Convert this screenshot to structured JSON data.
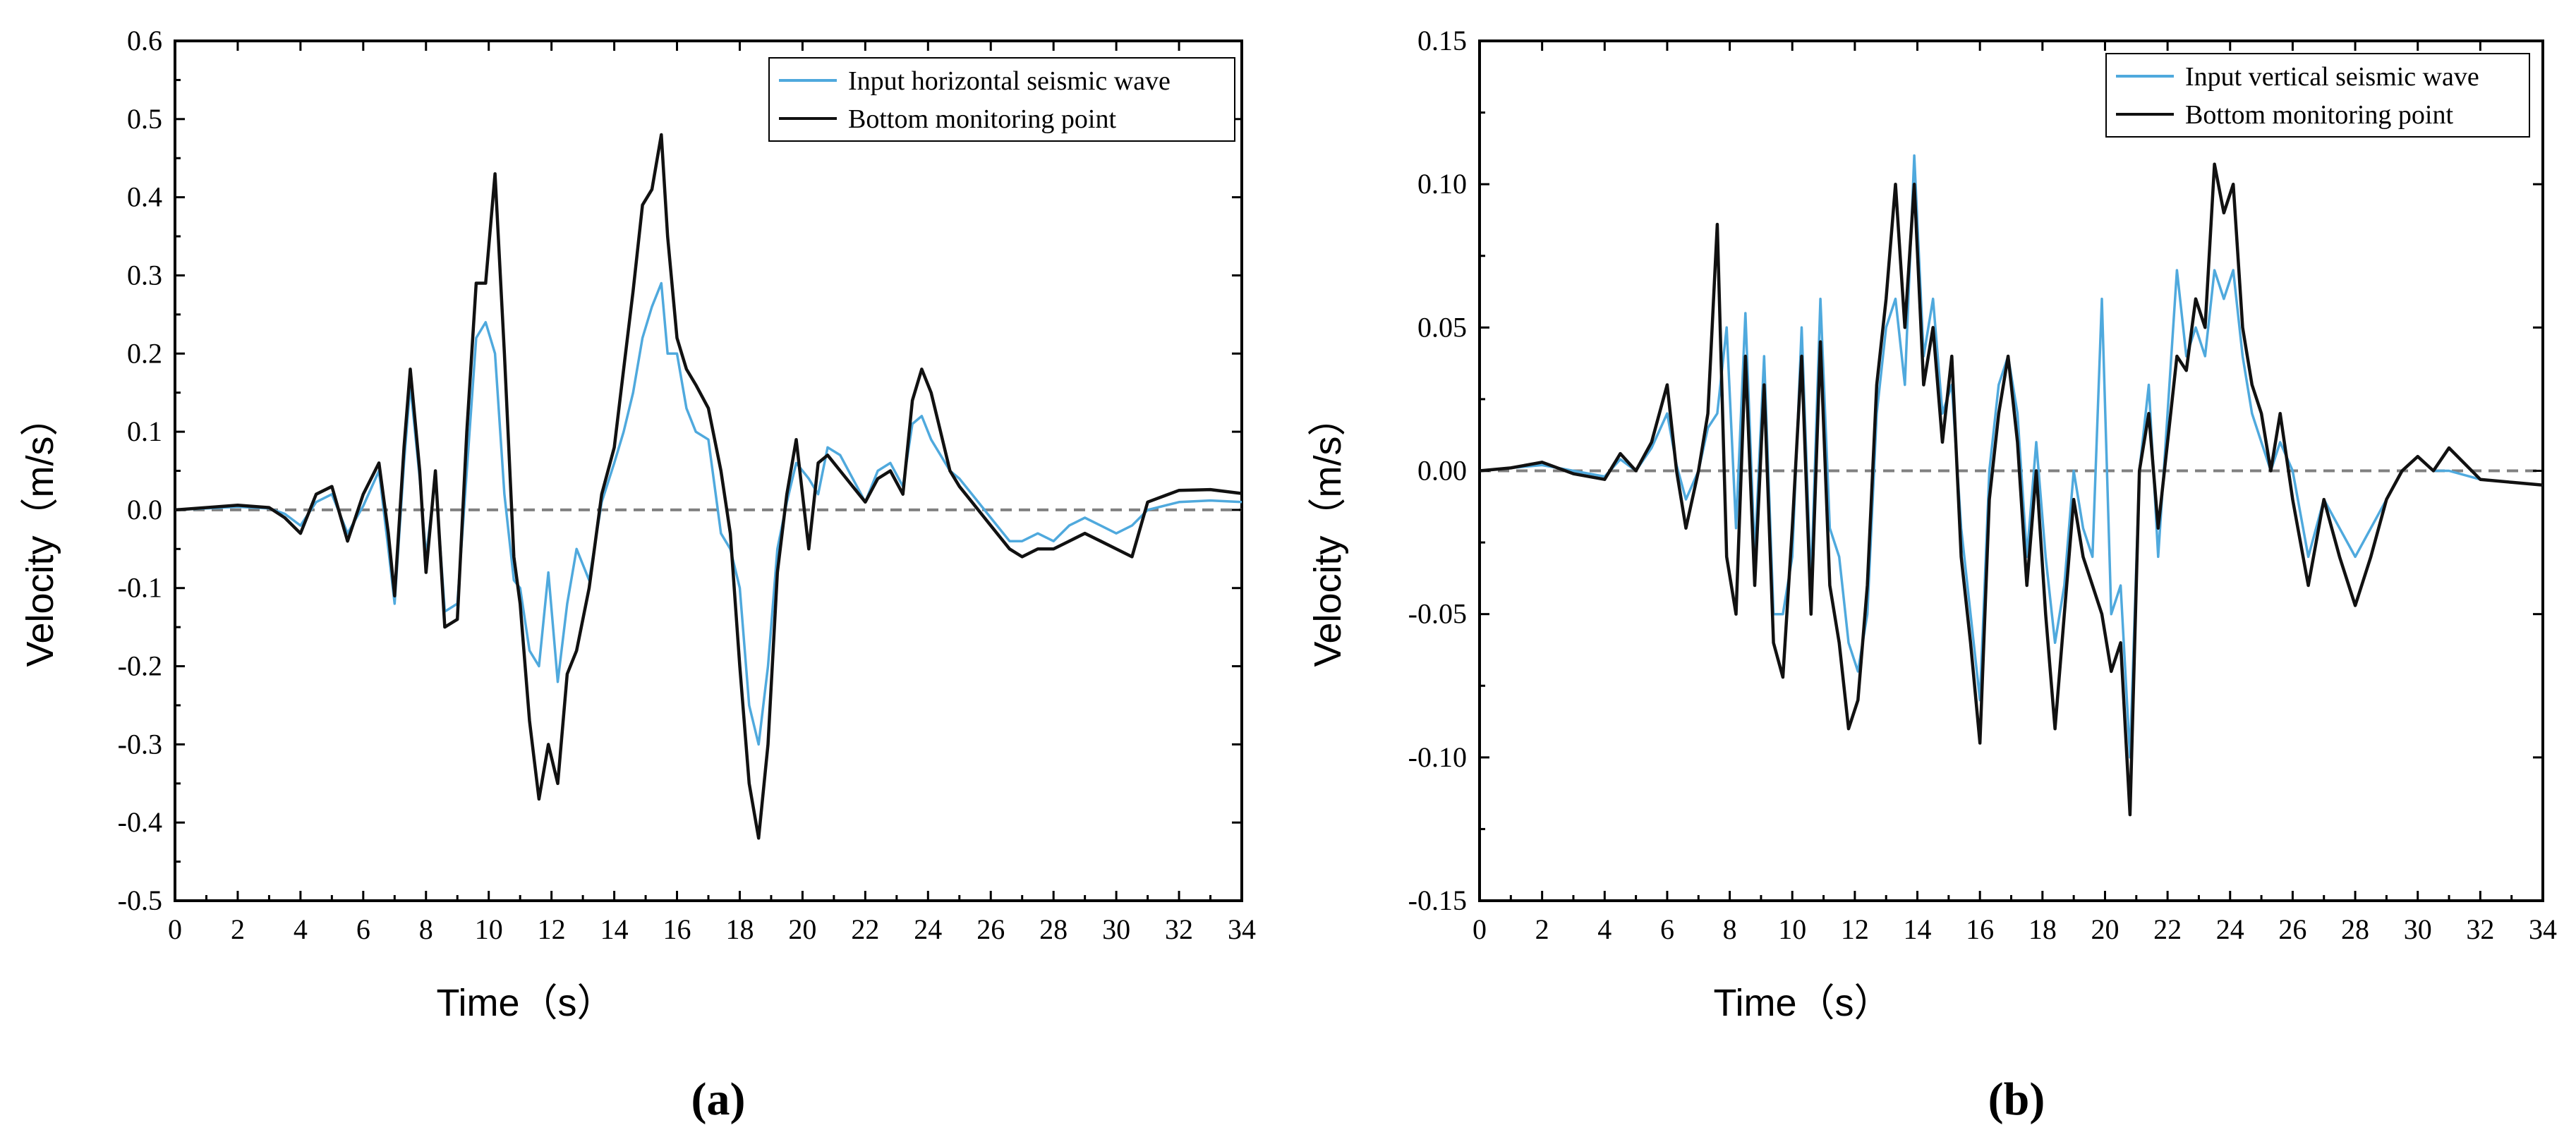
{
  "colors": {
    "input": "#4fa9dd",
    "bottom": "#111111",
    "zero_line": "#808080",
    "axis": "#000000"
  },
  "chart_data": [
    {
      "type": "line",
      "panel_label": "(a)",
      "xlabel": "Time（s）",
      "ylabel": "Velocity（m/s）",
      "xlim": [
        0,
        34
      ],
      "ylim": [
        -0.5,
        0.6
      ],
      "x_ticks": [
        0,
        2,
        4,
        6,
        8,
        10,
        12,
        14,
        16,
        18,
        20,
        22,
        24,
        26,
        28,
        30,
        32,
        34
      ],
      "x_tick_labels": [
        "0",
        "2",
        "4",
        "6",
        "8",
        "10",
        "12",
        "14",
        "16",
        "18",
        "20",
        "22",
        "24",
        "26",
        "28",
        "30",
        "32",
        "34"
      ],
      "y_ticks": [
        -0.5,
        -0.4,
        -0.3,
        -0.2,
        -0.1,
        0.0,
        0.1,
        0.2,
        0.3,
        0.4,
        0.5,
        0.6
      ],
      "y_tick_labels": [
        "-0.5",
        "-0.4",
        "-0.3",
        "-0.2",
        "-0.1",
        "0.0",
        "0.1",
        "0.2",
        "0.3",
        "0.4",
        "0.5",
        "0.6"
      ],
      "zero_line": 0,
      "legend_position": "top-right",
      "series": [
        {
          "name": "Input horizontal seismic wave",
          "color_key": "input",
          "x": [
            0,
            1,
            2,
            3,
            3.5,
            4,
            4.5,
            5,
            5.5,
            6,
            6.5,
            6.8,
            7,
            7.3,
            7.5,
            7.8,
            8,
            8.3,
            8.6,
            9,
            9.3,
            9.6,
            9.9,
            10.2,
            10.5,
            10.8,
            11,
            11.3,
            11.6,
            11.9,
            12.2,
            12.5,
            12.8,
            13.2,
            13.6,
            14,
            14.3,
            14.6,
            14.9,
            15.2,
            15.5,
            15.7,
            16,
            16.3,
            16.6,
            17,
            17.4,
            17.7,
            18,
            18.3,
            18.6,
            18.9,
            19.2,
            19.5,
            19.8,
            20.2,
            20.5,
            20.8,
            21.2,
            21.6,
            22,
            22.4,
            22.8,
            23.2,
            23.5,
            23.8,
            24.1,
            24.4,
            24.7,
            25,
            25.4,
            25.8,
            26.2,
            26.6,
            27,
            27.5,
            28,
            28.5,
            29,
            29.5,
            30,
            30.5,
            31,
            32,
            33,
            34
          ],
          "y": [
            0,
            0.002,
            0.004,
            0.002,
            -0.005,
            -0.02,
            0.01,
            0.02,
            -0.03,
            0.005,
            0.05,
            -0.05,
            -0.12,
            0.06,
            0.16,
            0.04,
            -0.06,
            0.04,
            -0.13,
            -0.12,
            0.05,
            0.22,
            0.24,
            0.2,
            0.02,
            -0.09,
            -0.1,
            -0.18,
            -0.2,
            -0.08,
            -0.22,
            -0.12,
            -0.05,
            -0.09,
            0.01,
            0.06,
            0.1,
            0.15,
            0.22,
            0.26,
            0.29,
            0.2,
            0.2,
            0.13,
            0.1,
            0.09,
            -0.03,
            -0.05,
            -0.1,
            -0.25,
            -0.3,
            -0.2,
            -0.05,
            0.01,
            0.06,
            0.04,
            0.02,
            0.08,
            0.07,
            0.04,
            0.01,
            0.05,
            0.06,
            0.03,
            0.11,
            0.12,
            0.09,
            0.07,
            0.05,
            0.04,
            0.02,
            0.0,
            -0.02,
            -0.04,
            -0.04,
            -0.03,
            -0.04,
            -0.02,
            -0.01,
            -0.02,
            -0.03,
            -0.02,
            0.0,
            0.01,
            0.012,
            0.01
          ]
        },
        {
          "name": "Bottom monitoring point",
          "color_key": "bottom",
          "x": [
            0,
            1,
            2,
            3,
            3.5,
            4,
            4.5,
            5,
            5.5,
            6,
            6.5,
            6.8,
            7,
            7.3,
            7.5,
            7.8,
            8,
            8.3,
            8.6,
            9,
            9.3,
            9.6,
            9.9,
            10.2,
            10.5,
            10.8,
            11,
            11.3,
            11.6,
            11.9,
            12.2,
            12.5,
            12.8,
            13.2,
            13.6,
            14,
            14.3,
            14.6,
            14.9,
            15.2,
            15.5,
            15.7,
            16,
            16.3,
            16.6,
            17,
            17.4,
            17.7,
            18,
            18.3,
            18.6,
            18.9,
            19.2,
            19.5,
            19.8,
            20.2,
            20.5,
            20.8,
            21.2,
            21.6,
            22,
            22.4,
            22.8,
            23.2,
            23.5,
            23.8,
            24.1,
            24.4,
            24.7,
            25,
            25.4,
            25.8,
            26.2,
            26.6,
            27,
            27.5,
            28,
            28.5,
            29,
            29.5,
            30,
            30.5,
            31,
            32,
            33,
            34
          ],
          "y": [
            0,
            0.003,
            0.006,
            0.003,
            -0.01,
            -0.03,
            0.02,
            0.03,
            -0.04,
            0.02,
            0.06,
            -0.03,
            -0.11,
            0.08,
            0.18,
            0.05,
            -0.08,
            0.05,
            -0.15,
            -0.14,
            0.1,
            0.29,
            0.29,
            0.43,
            0.2,
            -0.06,
            -0.12,
            -0.27,
            -0.37,
            -0.3,
            -0.35,
            -0.21,
            -0.18,
            -0.1,
            0.02,
            0.08,
            0.18,
            0.28,
            0.39,
            0.41,
            0.48,
            0.35,
            0.22,
            0.18,
            0.16,
            0.13,
            0.05,
            -0.03,
            -0.2,
            -0.35,
            -0.42,
            -0.3,
            -0.08,
            0.02,
            0.09,
            -0.05,
            0.06,
            0.07,
            0.05,
            0.03,
            0.01,
            0.04,
            0.05,
            0.02,
            0.14,
            0.18,
            0.15,
            0.1,
            0.05,
            0.03,
            0.01,
            -0.01,
            -0.03,
            -0.05,
            -0.06,
            -0.05,
            -0.05,
            -0.04,
            -0.03,
            -0.04,
            -0.05,
            -0.06,
            0.01,
            0.025,
            0.026,
            0.021
          ]
        }
      ]
    },
    {
      "type": "line",
      "panel_label": "(b)",
      "xlabel": "Time（s）",
      "ylabel": "Velocity（m/s）",
      "xlim": [
        0,
        34
      ],
      "ylim": [
        -0.15,
        0.15
      ],
      "x_ticks": [
        0,
        2,
        4,
        6,
        8,
        10,
        12,
        14,
        16,
        18,
        20,
        22,
        24,
        26,
        28,
        30,
        32,
        34
      ],
      "x_tick_labels": [
        "0",
        "2",
        "4",
        "6",
        "8",
        "10",
        "12",
        "14",
        "16",
        "18",
        "20",
        "22",
        "24",
        "26",
        "28",
        "30",
        "32",
        "34"
      ],
      "y_ticks": [
        -0.15,
        -0.1,
        -0.05,
        0.0,
        0.05,
        0.1,
        0.15
      ],
      "y_tick_labels": [
        "-0.15",
        "-0.10",
        "-0.05",
        "0.00",
        "0.05",
        "0.10",
        "0.15"
      ],
      "zero_line": 0,
      "legend_position": "top-right",
      "series": [
        {
          "name": "Input vertical seismic wave",
          "color_key": "input",
          "x": [
            0,
            1,
            2,
            3,
            4,
            4.5,
            5,
            5.5,
            6,
            6.3,
            6.6,
            7,
            7.3,
            7.6,
            7.9,
            8.2,
            8.5,
            8.8,
            9.1,
            9.4,
            9.7,
            10,
            10.3,
            10.6,
            10.9,
            11.2,
            11.5,
            11.8,
            12.1,
            12.4,
            12.7,
            13,
            13.3,
            13.6,
            13.9,
            14.2,
            14.5,
            14.8,
            15.1,
            15.4,
            15.7,
            16,
            16.3,
            16.6,
            16.9,
            17.2,
            17.5,
            17.8,
            18.1,
            18.4,
            18.7,
            19,
            19.3,
            19.6,
            19.9,
            20.2,
            20.5,
            20.8,
            21.1,
            21.4,
            21.7,
            22,
            22.3,
            22.6,
            22.9,
            23.2,
            23.5,
            23.8,
            24.1,
            24.4,
            24.7,
            25,
            25.3,
            25.6,
            26,
            26.5,
            27,
            27.5,
            28,
            28.5,
            29,
            29.5,
            30,
            30.5,
            31,
            32,
            33,
            34
          ],
          "y": [
            0,
            0.001,
            0.002,
            0.0,
            -0.002,
            0.004,
            0.0,
            0.008,
            0.02,
            0.002,
            -0.01,
            0.0,
            0.015,
            0.02,
            0.05,
            -0.02,
            0.055,
            -0.03,
            0.04,
            -0.05,
            -0.05,
            -0.03,
            0.05,
            -0.04,
            0.06,
            -0.02,
            -0.03,
            -0.06,
            -0.07,
            -0.05,
            0.02,
            0.05,
            0.06,
            0.03,
            0.11,
            0.04,
            0.06,
            0.02,
            0.03,
            -0.02,
            -0.05,
            -0.08,
            0.0,
            0.03,
            0.04,
            0.02,
            -0.03,
            0.01,
            -0.03,
            -0.06,
            -0.04,
            0.0,
            -0.02,
            -0.03,
            0.06,
            -0.05,
            -0.04,
            -0.1,
            0.0,
            0.03,
            -0.03,
            0.02,
            0.07,
            0.04,
            0.05,
            0.04,
            0.07,
            0.06,
            0.07,
            0.04,
            0.02,
            0.01,
            0.0,
            0.01,
            0.0,
            -0.03,
            -0.01,
            -0.02,
            -0.03,
            -0.02,
            -0.01,
            0.0,
            0.005,
            0.0,
            0.0,
            -0.003,
            -0.004,
            -0.005
          ]
        },
        {
          "name": "Bottom monitoring point",
          "color_key": "bottom",
          "x": [
            0,
            1,
            2,
            3,
            4,
            4.5,
            5,
            5.5,
            6,
            6.3,
            6.6,
            7,
            7.3,
            7.6,
            7.9,
            8.2,
            8.5,
            8.8,
            9.1,
            9.4,
            9.7,
            10,
            10.3,
            10.6,
            10.9,
            11.2,
            11.5,
            11.8,
            12.1,
            12.4,
            12.7,
            13,
            13.3,
            13.6,
            13.9,
            14.2,
            14.5,
            14.8,
            15.1,
            15.4,
            15.7,
            16,
            16.3,
            16.6,
            16.9,
            17.2,
            17.5,
            17.8,
            18.1,
            18.4,
            18.7,
            19,
            19.3,
            19.6,
            19.9,
            20.2,
            20.5,
            20.8,
            21.1,
            21.4,
            21.7,
            22,
            22.3,
            22.6,
            22.9,
            23.2,
            23.5,
            23.8,
            24.1,
            24.4,
            24.7,
            25,
            25.3,
            25.6,
            26,
            26.5,
            27,
            27.5,
            28,
            28.5,
            29,
            29.5,
            30,
            30.5,
            31,
            32,
            33,
            34
          ],
          "y": [
            0,
            0.001,
            0.003,
            -0.001,
            -0.003,
            0.006,
            0.0,
            0.01,
            0.03,
            0.0,
            -0.02,
            0.0,
            0.02,
            0.086,
            -0.03,
            -0.05,
            0.04,
            -0.04,
            0.03,
            -0.06,
            -0.072,
            -0.02,
            0.04,
            -0.05,
            0.045,
            -0.04,
            -0.06,
            -0.09,
            -0.08,
            -0.04,
            0.03,
            0.06,
            0.1,
            0.05,
            0.1,
            0.03,
            0.05,
            0.01,
            0.04,
            -0.03,
            -0.06,
            -0.095,
            -0.01,
            0.02,
            0.04,
            0.01,
            -0.04,
            0.0,
            -0.05,
            -0.09,
            -0.05,
            -0.01,
            -0.03,
            -0.04,
            -0.05,
            -0.07,
            -0.06,
            -0.12,
            0.0,
            0.02,
            -0.02,
            0.01,
            0.04,
            0.035,
            0.06,
            0.05,
            0.107,
            0.09,
            0.1,
            0.05,
            0.03,
            0.02,
            0.0,
            0.02,
            -0.01,
            -0.04,
            -0.01,
            -0.03,
            -0.047,
            -0.03,
            -0.01,
            0.0,
            0.005,
            0.0,
            0.008,
            -0.003,
            -0.004,
            -0.005
          ]
        }
      ]
    }
  ]
}
